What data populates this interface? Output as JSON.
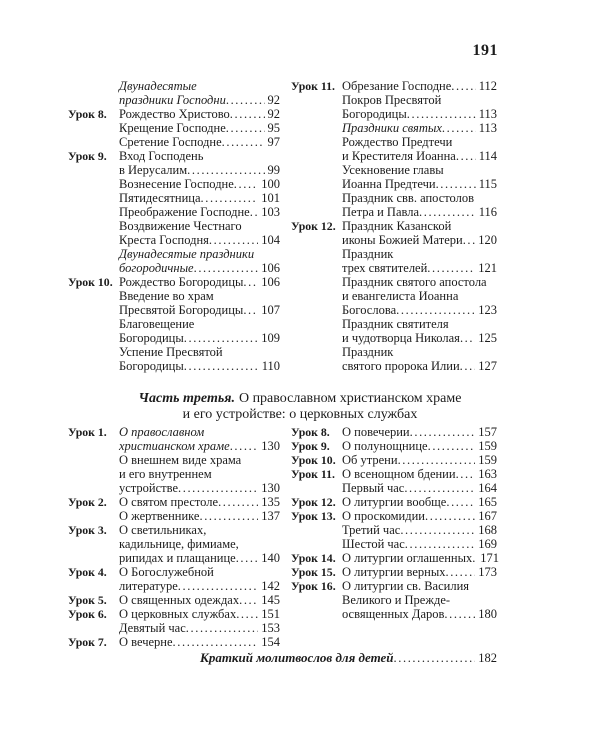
{
  "page": {
    "number": "191"
  },
  "colors": {
    "text": "#1c1c1c",
    "background": "#ffffff"
  },
  "section_heading": {
    "part_label": "Часть третья.",
    "title_rest": "О православном христианском храме",
    "line2": "и его устройстве: о церковных службах"
  },
  "toc_top": {
    "left": [
      {
        "text": "Двунадесятые",
        "italic": true
      },
      {
        "text": "праздники Господни",
        "page": "92",
        "italic": true
      },
      {
        "label": "Урок 8.",
        "text": "Рождество Христово",
        "page": "92"
      },
      {
        "text": "Крещение Господне",
        "page": "95"
      },
      {
        "text": "Сретение Господне",
        "page": "97"
      },
      {
        "label": "Урок 9.",
        "text": "Вход Господень"
      },
      {
        "text": "в Иерусалим",
        "page": "99"
      },
      {
        "text": "Вознесение Господне",
        "page": "100"
      },
      {
        "text": "Пятидесятница",
        "page": "101"
      },
      {
        "text": "Преображение Господне",
        "page": "103"
      },
      {
        "text": "Воздвижение Честнаго"
      },
      {
        "text": "Креста Господня",
        "page": "104"
      },
      {
        "text": "Двунадесятые праздники",
        "italic": true
      },
      {
        "text": "богородичные",
        "page": "106",
        "italic": true
      },
      {
        "label": "Урок 10.",
        "text": "Рождество Богородицы",
        "page": "106"
      },
      {
        "text": "Введение во храм"
      },
      {
        "text": "Пресвятой Богородицы",
        "page": "107"
      },
      {
        "text": "Благовещение"
      },
      {
        "text": "Богородицы",
        "page": "109"
      },
      {
        "text": "Успение Пресвятой"
      },
      {
        "text": "Богородицы",
        "page": "110"
      }
    ],
    "right": [
      {
        "label": "Урок 11.",
        "text": "Обрезание Господне",
        "page": "112"
      },
      {
        "text": "Покров Пресвятой"
      },
      {
        "text": "Богородицы",
        "page": "113"
      },
      {
        "text": "Праздники святых",
        "page": "113",
        "italic": true
      },
      {
        "text": "Рождество Предтечи"
      },
      {
        "text": "и Крестителя Иоанна",
        "page": "114"
      },
      {
        "text": "Усекновение главы"
      },
      {
        "text": "Иоанна Предтечи",
        "page": "115"
      },
      {
        "text": "Праздник свв. апостолов"
      },
      {
        "text": "Петра и Павла",
        "page": "116"
      },
      {
        "label": "Урок 12.",
        "text": "Праздник Казанской"
      },
      {
        "text": "иконы Божией Матери",
        "page": "120"
      },
      {
        "text": "Праздник"
      },
      {
        "text": "трех святителей",
        "page": "121"
      },
      {
        "text": "Праздник святого апостола"
      },
      {
        "text": "и евангелиста Иоанна"
      },
      {
        "text": "Богослова",
        "page": "123"
      },
      {
        "text": "Праздник святителя"
      },
      {
        "text": "и чудотворца Николая",
        "page": "125"
      },
      {
        "text": "Праздник"
      },
      {
        "text": "святого пророка Илии",
        "page": "127"
      }
    ]
  },
  "toc_bottom": {
    "left": [
      {
        "label": "Урок 1.",
        "text": "О православном",
        "italic": true
      },
      {
        "text": "христианском храме",
        "page": "130",
        "italic": true
      },
      {
        "text": "О внешнем виде храма"
      },
      {
        "text": "и его внутреннем"
      },
      {
        "text": "устройстве",
        "page": "130"
      },
      {
        "label": "Урок 2.",
        "text": "О святом престоле",
        "page": "135"
      },
      {
        "text": "О жертвеннике",
        "page": "137"
      },
      {
        "label": "Урок 3.",
        "text": "О светильниках,"
      },
      {
        "text": "кадильнице, фимиаме,"
      },
      {
        "text": "рипидах и плащанице",
        "page": "140"
      },
      {
        "label": "Урок 4.",
        "text": "О Богослужебной"
      },
      {
        "text": "литературе",
        "page": "142"
      },
      {
        "label": "Урок 5.",
        "text": "О священных одеждах",
        "page": "145"
      },
      {
        "label": "Урок 6.",
        "text": "О церковных службах",
        "page": "151"
      },
      {
        "text": "Девятый час",
        "page": "153"
      },
      {
        "label": "Урок 7.",
        "text": "О вечерне",
        "page": "154"
      }
    ],
    "right": [
      {
        "label": "Урок 8.",
        "text": "О повечерии",
        "page": "157"
      },
      {
        "label": "Урок 9.",
        "text": "О полунощнице",
        "page": "159"
      },
      {
        "label": "Урок 10.",
        "text": "Об утрени",
        "page": "159"
      },
      {
        "label": "Урок 11.",
        "text": "О всенощном бдении",
        "page": "163"
      },
      {
        "text": "Первый час",
        "page": "164"
      },
      {
        "label": "Урок 12.",
        "text": "О литургии вообще",
        "page": "165"
      },
      {
        "label": "Урок 13.",
        "text": "О проскомидии",
        "page": "167"
      },
      {
        "text": "Третий час",
        "page": "168"
      },
      {
        "text": "Шестой час",
        "page": "169"
      },
      {
        "label": "Урок 14.",
        "text": "О литургии оглашенных",
        "page": "171"
      },
      {
        "label": "Урок 15.",
        "text": "О литургии верных",
        "page": "173"
      },
      {
        "label": "Урок 16.",
        "text": "О литургии св. Василия"
      },
      {
        "text": "Великого и Прежде-"
      },
      {
        "text": "освященных Даров",
        "page": "180"
      }
    ]
  },
  "footer": {
    "text": "Краткий молитвослов для детей",
    "page": "182"
  }
}
